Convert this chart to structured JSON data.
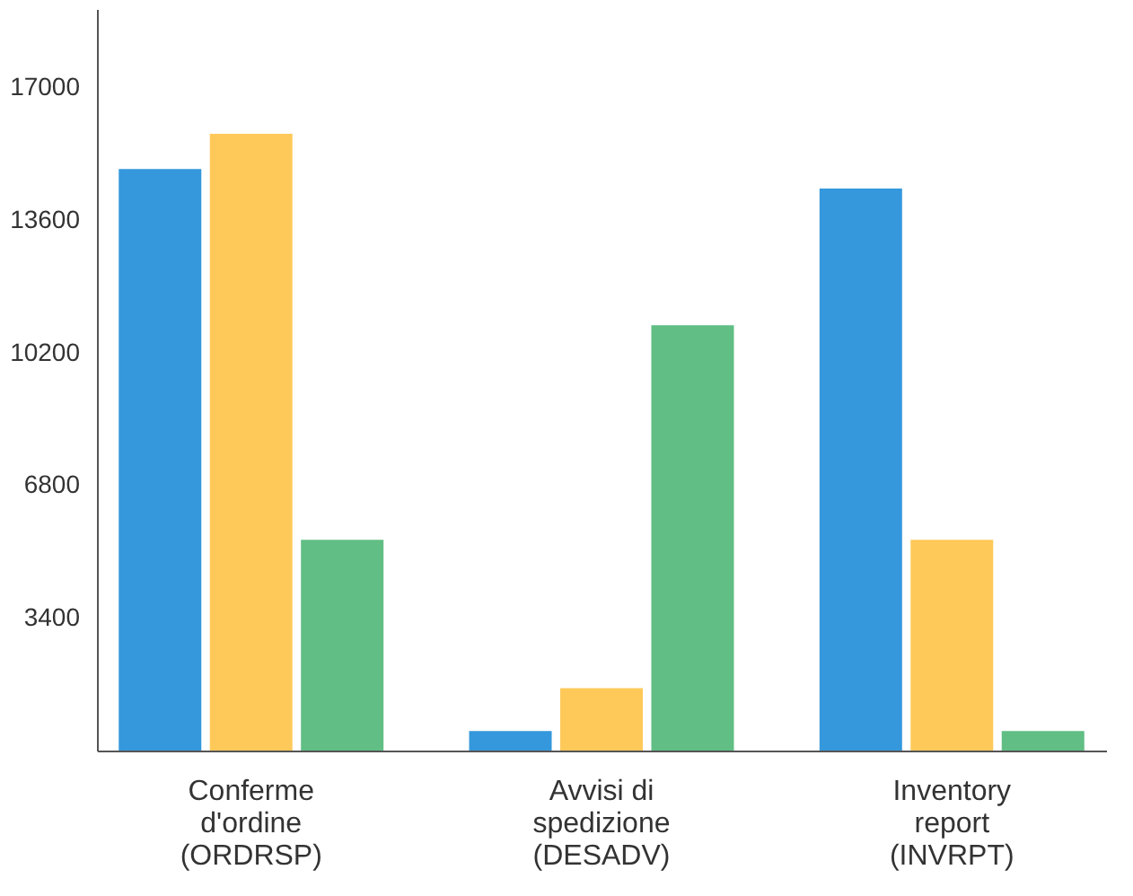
{
  "chart_data": {
    "type": "bar",
    "categories": [
      "Conferme d'ordine (ORDRSP)",
      "Avvisi di spedizione (DESADV)",
      "Inventory report (INVRPT)"
    ],
    "series": [
      {
        "color": "#3598dc",
        "values": [
          14900,
          500,
          14400
        ]
      },
      {
        "color": "#ffc95a",
        "values": [
          15800,
          1600,
          5400
        ]
      },
      {
        "color": "#61be84",
        "values": [
          5400,
          10900,
          500
        ]
      }
    ],
    "ylim": [
      0,
      19000
    ],
    "yticks": [
      3400,
      6800,
      10200,
      13600,
      17000
    ],
    "grid": false,
    "legend": false
  }
}
